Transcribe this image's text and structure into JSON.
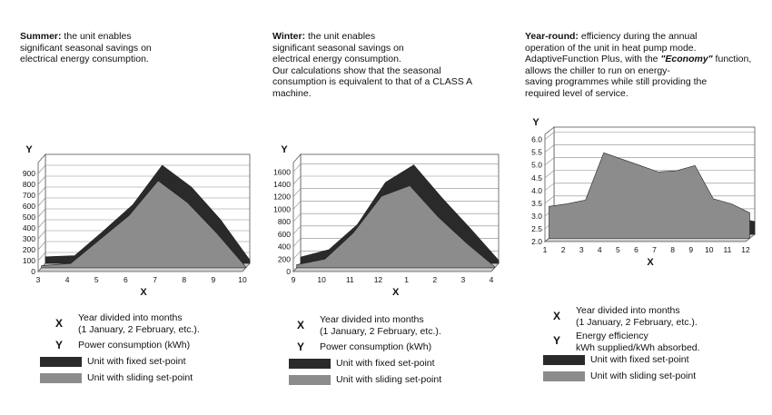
{
  "colors": {
    "fixed": "#2a2a2a",
    "sliding": "#8c8c8c",
    "wall": "#ffffff",
    "floor": "#cfcfcf",
    "grid": "#8a8a8a"
  },
  "panels": [
    {
      "id": "summer",
      "title": "Summer:",
      "text_lines": [
        " the unit enables",
        "significant seasonal savings on",
        "electrical energy consumption."
      ],
      "legend": {
        "x_key": "X",
        "x_lines": [
          "Year divided into months",
          "(1 January, 2 February, etc.)."
        ],
        "y_key": "Y",
        "y_lines": [
          "Power consumption (kWh)"
        ],
        "fixed_label": "Unit with fixed set-point",
        "sliding_label": "Unit with sliding set-point"
      }
    },
    {
      "id": "winter",
      "title": "Winter:",
      "text_lines": [
        " the unit enables",
        "significant seasonal savings on",
        "electrical energy consumption.",
        "Our calculations show that the seasonal",
        "consumption is equivalent to that of a CLASS A",
        "machine."
      ],
      "legend": {
        "x_key": "X",
        "x_lines": [
          "Year divided into months",
          "(1 January, 2 February, etc.)."
        ],
        "y_key": "Y",
        "y_lines": [
          "Power consumption (kWh)"
        ],
        "fixed_label": "Unit with fixed set-point",
        "sliding_label": "Unit with sliding set-point"
      }
    },
    {
      "id": "yearround",
      "title": "Year-round:",
      "text_lines": [
        " efficiency during the annual",
        "operation of the unit in heat pump mode.",
        "AdaptiveFunction Plus, with the ",
        "\"Economy\"",
        " function, allows the chiller to run on energy-",
        "saving programmes while still providing the",
        "required level of service."
      ],
      "legend": {
        "x_key": "X",
        "x_lines": [
          "Year divided into months",
          "(1 January, 2 February, etc.)."
        ],
        "y_key": "Y",
        "y_lines": [
          "Energy efficiency",
          "kWh supplied/kWh absorbed."
        ],
        "fixed_label": "Unit with fixed set-point",
        "sliding_label": "Unit with sliding set-point"
      }
    }
  ],
  "chart_data": [
    {
      "type": "area",
      "title": "Summer",
      "xlabel": "X",
      "ylabel": "Y",
      "categories": [
        "3",
        "4",
        "5",
        "6",
        "7",
        "8",
        "9",
        "10"
      ],
      "yticks": [
        "0",
        "100",
        "200",
        "300",
        "400",
        "500",
        "600",
        "700",
        "800",
        "900"
      ],
      "ylim": [
        0,
        1000
      ],
      "series": [
        {
          "name": "Unit with fixed set-point",
          "values": [
            60,
            70,
            300,
            540,
            900,
            700,
            400,
            30
          ]
        },
        {
          "name": "Unit with sliding set-point",
          "values": [
            20,
            40,
            260,
            480,
            800,
            600,
            320,
            10
          ]
        }
      ]
    },
    {
      "type": "area",
      "title": "Winter",
      "xlabel": "X",
      "ylabel": "Y",
      "categories": [
        "9",
        "10",
        "11",
        "12",
        "1",
        "2",
        "3",
        "4"
      ],
      "yticks": [
        "0",
        "200",
        "400",
        "600",
        "800",
        "1000",
        "1200",
        "1400",
        "1600"
      ],
      "ylim": [
        0,
        1750
      ],
      "series": [
        {
          "name": "Unit with fixed set-point",
          "values": [
            100,
            220,
            620,
            1300,
            1580,
            1050,
            560,
            50
          ]
        },
        {
          "name": "Unit with sliding set-point",
          "values": [
            50,
            140,
            560,
            1150,
            1320,
            820,
            400,
            20
          ]
        }
      ]
    },
    {
      "type": "area",
      "title": "Year-round",
      "xlabel": "X",
      "ylabel": "Y",
      "categories": [
        "1",
        "2",
        "3",
        "4",
        "5",
        "6",
        "7",
        "8",
        "9",
        "10",
        "11",
        "12"
      ],
      "yticks": [
        "2.0",
        "2.5",
        "3.0",
        "3.5",
        "4.0",
        "4.5",
        "5.0",
        "5.5",
        "6.0"
      ],
      "ylim": [
        2.0,
        6.2
      ],
      "series": [
        {
          "name": "Unit with fixed set-point",
          "values": [
            2.75,
            2.8,
            2.9,
            4.75,
            4.5,
            4.3,
            4.1,
            4.1,
            4.3,
            2.8,
            2.65,
            2.5
          ]
        },
        {
          "name": "Unit with sliding set-point",
          "values": [
            3.25,
            3.35,
            3.5,
            5.35,
            5.1,
            4.85,
            4.6,
            4.65,
            4.85,
            3.55,
            3.35,
            3.0
          ]
        }
      ]
    }
  ]
}
